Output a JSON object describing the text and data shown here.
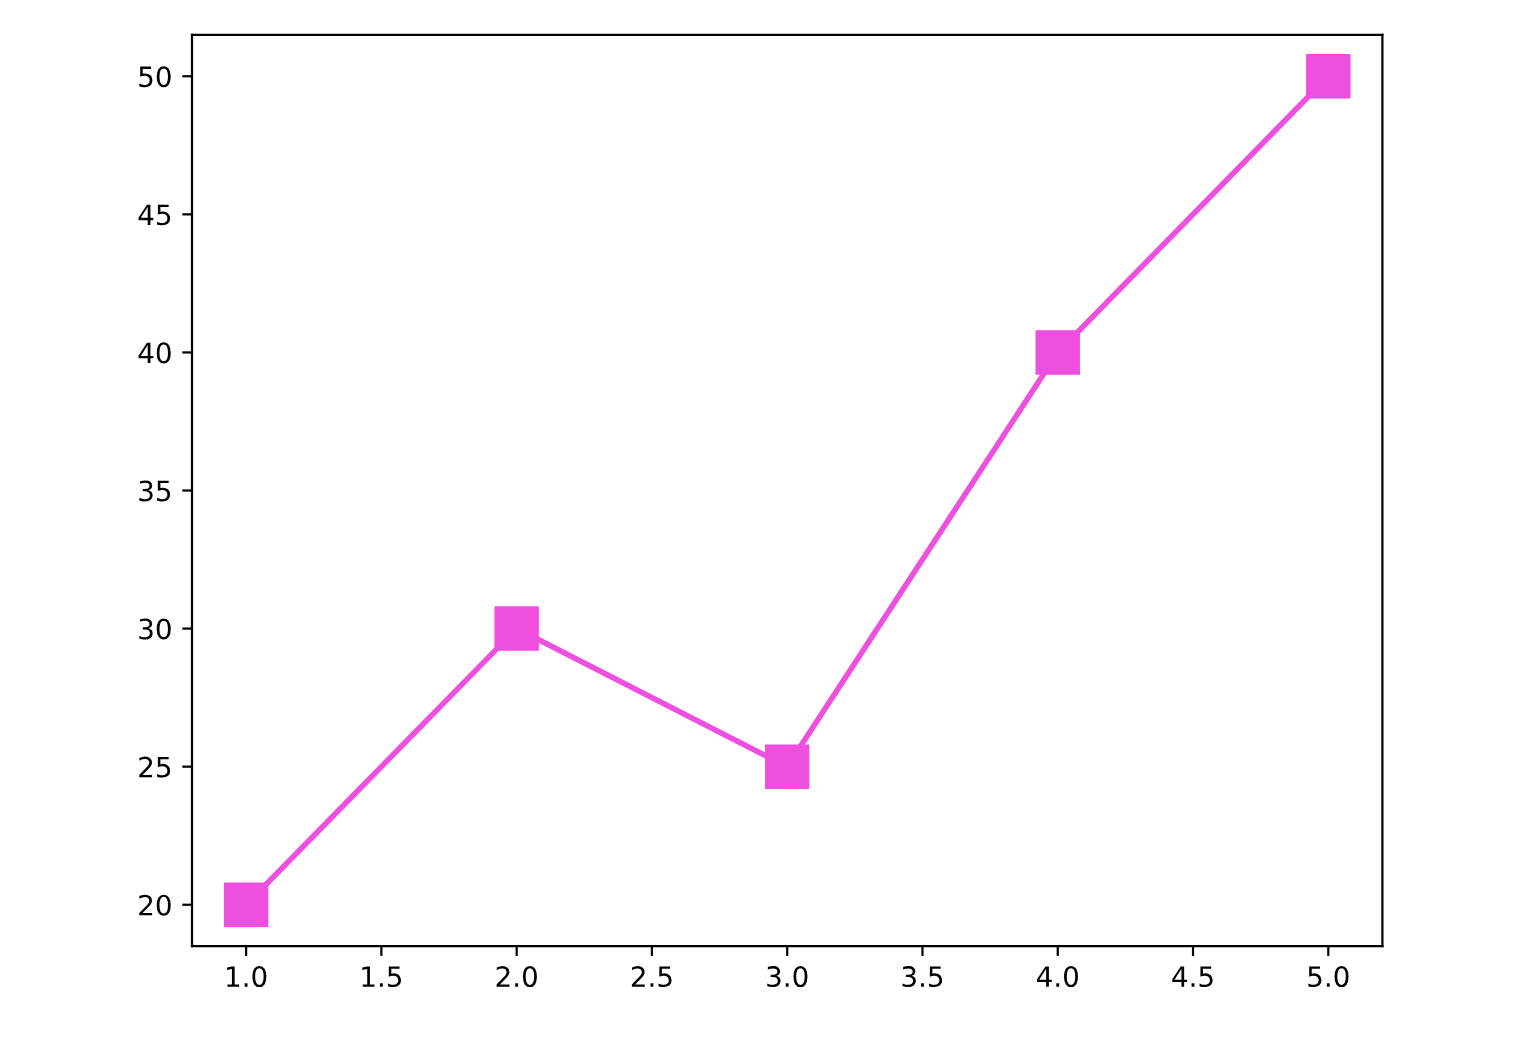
{
  "chart_data": {
    "type": "line",
    "x": [
      1,
      2,
      3,
      4,
      5
    ],
    "series": [
      {
        "color": "#ee4fde",
        "values": [
          20,
          30,
          25,
          40,
          50
        ]
      }
    ],
    "marker": "square",
    "line_style": "solid",
    "xlim": [
      0.8,
      5.2
    ],
    "ylim": [
      18.5,
      51.5
    ],
    "xticks": [
      {
        "value": 1,
        "label": "1.0"
      },
      {
        "value": 1.5,
        "label": "1.5"
      },
      {
        "value": 2,
        "label": "2.0"
      },
      {
        "value": 2.5,
        "label": "2.5"
      },
      {
        "value": 3,
        "label": "3.0"
      },
      {
        "value": 3.5,
        "label": "3.5"
      },
      {
        "value": 4,
        "label": "4.0"
      },
      {
        "value": 4.5,
        "label": "4.5"
      },
      {
        "value": 5,
        "label": "5.0"
      }
    ],
    "yticks": [
      20,
      25,
      30,
      35,
      40,
      45,
      50
    ],
    "grid": false,
    "legend": false
  }
}
